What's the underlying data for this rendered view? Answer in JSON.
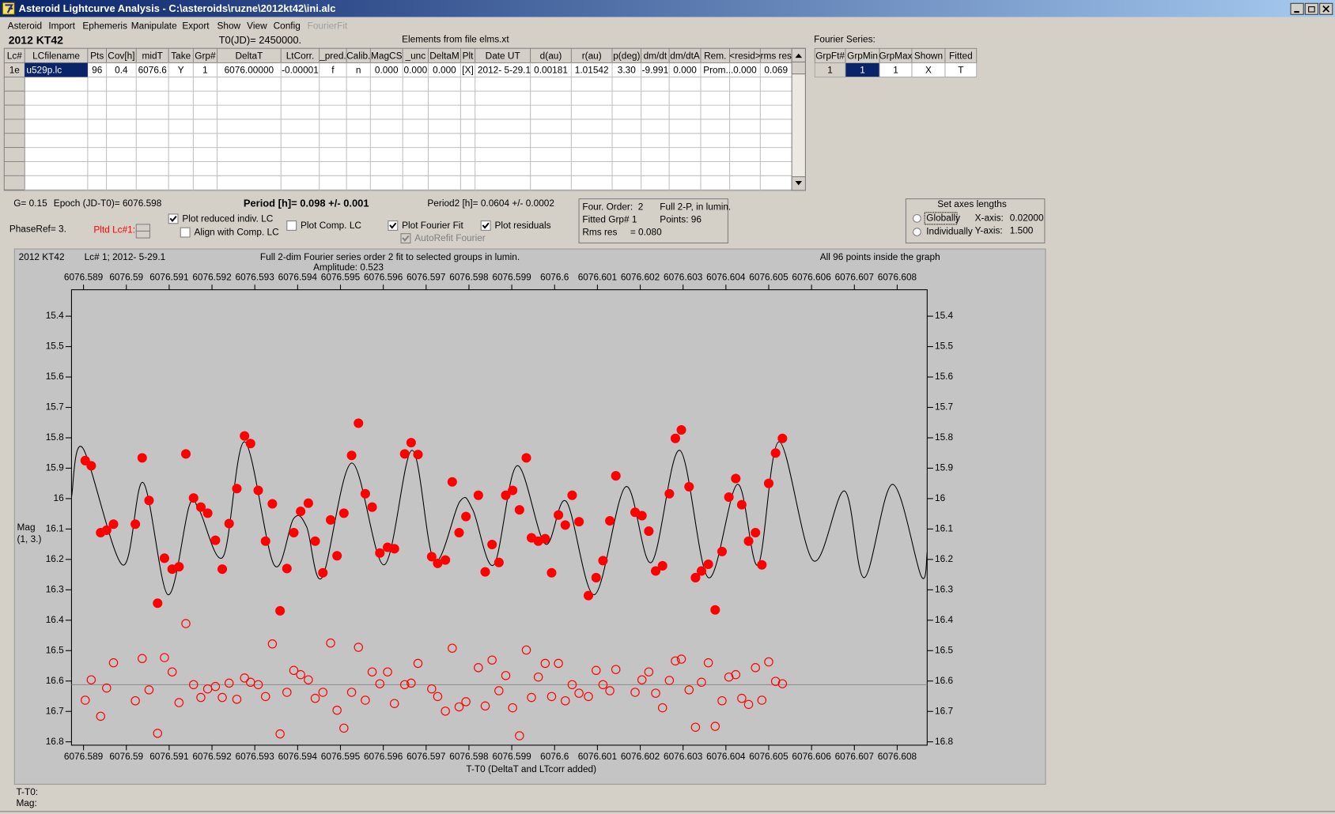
{
  "window": {
    "title": "Asteroid Lightcurve Analysis - C:\\asteroids\\ruzne\\2012kt42\\ini.alc",
    "menu": [
      {
        "label": "Asteroid"
      },
      {
        "label": "Import"
      },
      {
        "label": "Ephemeris"
      },
      {
        "label": "Manipulate"
      },
      {
        "label": "Export"
      },
      {
        "label": "Show"
      },
      {
        "label": "View"
      },
      {
        "label": "Config"
      },
      {
        "label": "FourierFit",
        "enabled": false
      }
    ]
  },
  "header": {
    "object": "2012 KT42",
    "t0": "T0(JD)= 2450000.",
    "elements": "Elements from file elms.xt",
    "fourier_series": "Fourier Series:"
  },
  "table": {
    "columns": [
      "Lc#",
      "LCfilename",
      "Pts",
      "Cov[h]",
      "midT",
      "Take",
      "Grp#",
      "DeltaT",
      "LtCorr.",
      "_pred.",
      "Calib.",
      "MagCS",
      "_unc",
      "DeltaM",
      "Plt",
      "Date UT",
      "d(au)",
      "r(au)",
      "p(deg)",
      "dm/dt",
      "dm/dtA",
      "Rem.",
      "<resid>",
      "rms res"
    ],
    "rows": [
      [
        "1e",
        "u529p.lc",
        "96",
        "0.4",
        "6076.6",
        "Y",
        "1",
        "6076.00000",
        "-0.00001",
        "f",
        "n",
        "0.000",
        "0.000",
        "0.000",
        "[X]",
        "2012- 5-29.1",
        "0.00181",
        "1.01542",
        "3.30",
        "-9.991",
        "0.000",
        "Prom...",
        "0.000",
        "0.069"
      ]
    ]
  },
  "fourier_table": {
    "columns": [
      "GrpFt#",
      "GrpMin",
      "GrpMax",
      "Shown",
      "Fitted"
    ],
    "rows": [
      [
        "1",
        "1",
        "1",
        "X",
        "T"
      ]
    ]
  },
  "controls": {
    "g": "G= 0.15",
    "epoch": "Epoch (JD-T0)= 6076.598",
    "period": "Period [h]= 0.098 +/- 0.001",
    "period2": "Period2 [h]= 0.0604 +/- 0.0002",
    "phase_ref": "PhaseRef= 3.",
    "plotted_lc": "Pltd Lc#1:",
    "checkboxes": [
      {
        "label": "Plot reduced indiv. LC",
        "checked": true
      },
      {
        "label": "Align with Comp. LC",
        "checked": false
      },
      {
        "label": "Plot Comp. LC",
        "checked": false
      },
      {
        "label": "Plot Fourier Fit",
        "checked": true
      },
      {
        "label": "Plot residuals",
        "checked": true
      },
      {
        "label": "AutoRefit Fourier",
        "checked": true,
        "enabled": false
      }
    ],
    "fit_info": [
      "Four. Order:  2",
      "Full 2-P, in lumin.",
      "Fitted Grp# 1",
      "Points: 96",
      "Rms res     = 0.080"
    ],
    "axes": {
      "title": "Set axes lengths",
      "options": [
        {
          "label": "Globally",
          "selected": false
        },
        {
          "label": "Individually",
          "selected": false
        }
      ],
      "x_label": "X-axis:",
      "x_value": "0.02000",
      "y_label": "Y-axis:",
      "y_value": "1.500"
    }
  },
  "status": {
    "t_t0": "T-T0:",
    "mag": "Mag:"
  },
  "chart_data": {
    "type": "scatter",
    "title": "2012 KT42",
    "lc_label": "Lc# 1; 2012- 5-29.1",
    "fit_note": "Full 2-dim Fourier series order 2 fit to selected groups in lumin.",
    "amplitude": "Amplitude: 0.523",
    "points_note": "All 96 points inside the graph",
    "xlabel": "T-T0 (DeltaT and LTcorr added)",
    "ylabel": "Mag",
    "ylabel_units": "(1, 3.)",
    "xlim": [
      6076.58872,
      6076.6087
    ],
    "xticks": [
      6076.589,
      6076.59,
      6076.591,
      6076.592,
      6076.593,
      6076.594,
      6076.595,
      6076.596,
      6076.597,
      6076.598,
      6076.599,
      6076.6,
      6076.601,
      6076.602,
      6076.603,
      6076.604,
      6076.605,
      6076.606,
      6076.607,
      6076.608
    ],
    "ylim": [
      15.313,
      16.811
    ],
    "yticks": [
      15.4,
      15.5,
      15.6,
      15.7,
      15.8,
      15.9,
      16.0,
      16.1,
      16.2,
      16.3,
      16.4,
      16.5,
      16.6,
      16.7,
      16.8
    ],
    "y_inverted": true,
    "x": [
      6076.58904,
      6076.58918,
      6076.5894,
      6076.58954,
      6076.5897,
      6076.59021,
      6076.59037,
      6076.59053,
      6076.59073,
      6076.59089,
      6076.59107,
      6076.59123,
      6076.59139,
      6076.59157,
      6076.59174,
      6076.5919,
      6076.59208,
      6076.59224,
      6076.5924,
      6076.59258,
      6076.59276,
      6076.5929,
      6076.59308,
      6076.59325,
      6076.59341,
      6076.59359,
      6076.59375,
      6076.59391,
      6076.59407,
      6076.59425,
      6076.59441,
      6076.59459,
      6076.59477,
      6076.59492,
      6076.59508,
      6076.59526,
      6076.59542,
      6076.59558,
      6076.59574,
      6076.59592,
      6076.5961,
      6076.59626,
      6076.5965,
      6076.59665,
      6076.59681,
      6076.59713,
      6076.59727,
      6076.59745,
      6076.59761,
      6076.59777,
      6076.59793,
      6076.59822,
      6076.59838,
      6076.59854,
      6076.5987,
      6076.59886,
      6076.59902,
      6076.59918,
      6076.59934,
      6076.59946,
      6076.59962,
      6076.59978,
      6076.59993,
      6076.60009,
      6076.60025,
      6076.60041,
      6076.60057,
      6076.60079,
      6076.60097,
      6076.60113,
      6076.60129,
      6076.60143,
      6076.60188,
      6076.60204,
      6076.6022,
      6076.60236,
      6076.60252,
      6076.60268,
      6076.60282,
      6076.60296,
      6076.60314,
      6076.60329,
      6076.60343,
      6076.60359,
      6076.60375,
      6076.60391,
      6076.60407,
      6076.60423,
      6076.60437,
      6076.60453,
      6076.60469,
      6076.60484,
      6076.605,
      6076.60516,
      6076.60532
    ],
    "series": [
      {
        "color": "#ff0000",
        "marker": "filled",
        "values": [
          15.875,
          15.892,
          16.112,
          16.104,
          16.084,
          16.084,
          15.866,
          16.006,
          16.344,
          16.196,
          16.232,
          16.224,
          15.853,
          15.998,
          16.028,
          16.048,
          16.137,
          16.232,
          16.082,
          15.967,
          15.794,
          15.819,
          15.973,
          16.14,
          16.017,
          16.369,
          16.23,
          16.112,
          16.042,
          16.015,
          16.14,
          16.244,
          16.07,
          16.188,
          16.048,
          15.858,
          15.752,
          15.984,
          16.028,
          16.179,
          16.16,
          16.165,
          15.853,
          15.816,
          15.855,
          16.191,
          16.213,
          16.202,
          15.945,
          16.112,
          16.059,
          15.989,
          16.241,
          16.151,
          16.21,
          15.989,
          15.973,
          16.037,
          15.866,
          16.129,
          16.14,
          16.132,
          16.244,
          16.054,
          16.087,
          15.989,
          16.076,
          16.319,
          16.26,
          16.204,
          16.073,
          15.925,
          16.045,
          16.056,
          16.107,
          16.238,
          16.221,
          15.984,
          15.802,
          15.774,
          15.961,
          16.26,
          16.238,
          16.216,
          16.366,
          16.174,
          15.995,
          15.934,
          16.02,
          16.14,
          16.112,
          16.218,
          15.95,
          15.85,
          15.802
        ]
      },
      {
        "color": "#ff0000",
        "marker": "hollow",
        "values": [
          16.663,
          16.596,
          16.716,
          16.623,
          16.54,
          16.665,
          16.526,
          16.629,
          16.772,
          16.523,
          16.57,
          16.671,
          16.411,
          16.612,
          16.654,
          16.626,
          16.618,
          16.654,
          16.607,
          16.66,
          16.59,
          16.604,
          16.612,
          16.651,
          16.478,
          16.774,
          16.637,
          16.565,
          16.579,
          16.596,
          16.657,
          16.637,
          16.475,
          16.696,
          16.755,
          16.637,
          16.489,
          16.663,
          16.57,
          16.609,
          16.57,
          16.674,
          16.612,
          16.607,
          16.542,
          16.626,
          16.651,
          16.699,
          16.492,
          16.685,
          16.668,
          16.556,
          16.682,
          16.531,
          16.632,
          16.582,
          16.688,
          16.78,
          16.498,
          16.654,
          16.587,
          16.542,
          16.651,
          16.542,
          16.665,
          16.612,
          16.64,
          16.651,
          16.565,
          16.612,
          16.632,
          16.562,
          16.637,
          16.596,
          16.57,
          16.64,
          16.688,
          16.598,
          16.534,
          16.528,
          16.629,
          16.752,
          16.604,
          16.54,
          16.749,
          16.665,
          16.587,
          16.579,
          16.657,
          16.677,
          16.556,
          16.663,
          16.537,
          16.601,
          16.609
        ]
      }
    ],
    "fit": {
      "color": "#000000",
      "x": [
        6076.58872,
        6076.58898,
        6076.58991,
        6076.59039,
        6076.59097,
        6076.59147,
        6076.5917,
        6076.59226,
        6076.59276,
        6076.59345,
        6076.59391,
        6076.59421,
        6076.59457,
        6076.59526,
        6076.59602,
        6076.59667,
        6076.59719,
        6076.59779,
        6076.59809,
        6076.59858,
        6076.59912,
        6076.59978,
        6076.60027,
        6076.60093,
        6076.60166,
        6076.60226,
        6076.60292,
        6076.60359,
        6076.60427,
        6076.60475,
        6076.60524,
        6076.60604,
        6076.60677,
        6076.60723,
        6076.60789,
        6076.60856,
        6076.6087
      ],
      "values": [
        15.995,
        15.833,
        16.218,
        15.947,
        16.316,
        16.023,
        16.037,
        16.191,
        15.813,
        16.218,
        16.065,
        16.093,
        16.26,
        15.883,
        16.218,
        15.841,
        16.204,
        16.009,
        16.037,
        16.218,
        15.892,
        16.149,
        16.009,
        16.316,
        15.961,
        16.21,
        15.841,
        16.26,
        15.953,
        16.218,
        15.813,
        16.204,
        15.975,
        16.26,
        15.953,
        16.255,
        16.177
      ]
    },
    "ref_line": 16.612,
    "ref_line_color": "#8a8a8a"
  }
}
